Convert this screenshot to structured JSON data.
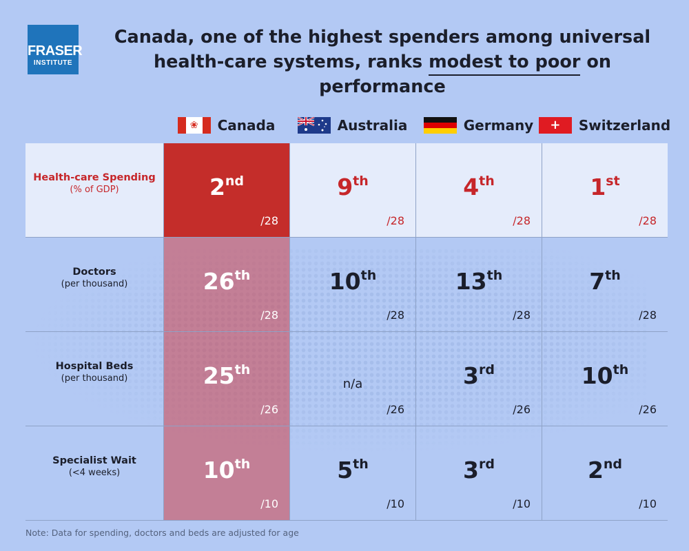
{
  "logo": {
    "line1": "FRASER",
    "line2": "INSTITUTE"
  },
  "title": {
    "line1": "Canada, one of the highest spenders among universal",
    "line2_pre": "health-care systems, ranks ",
    "line2_underlined": "modest to poor",
    "line2_post": " on performance"
  },
  "countries": [
    {
      "name": "Canada",
      "flag": "canada-flag-icon"
    },
    {
      "name": "Australia",
      "flag": "australia-flag-icon"
    },
    {
      "name": "Germany",
      "flag": "germany-flag-icon"
    },
    {
      "name": "Switzerland",
      "flag": "switzerland-flag-icon"
    }
  ],
  "rows": [
    {
      "label": "Health-care Spending",
      "sublabel": "(% of GDP)",
      "cells": [
        {
          "num": "2",
          "suffix": "nd",
          "denom": "/28"
        },
        {
          "num": "9",
          "suffix": "th",
          "denom": "/28"
        },
        {
          "num": "4",
          "suffix": "th",
          "denom": "/28"
        },
        {
          "num": "1",
          "suffix": "st",
          "denom": "/28"
        }
      ]
    },
    {
      "label": "Doctors",
      "sublabel": "(per thousand)",
      "cells": [
        {
          "num": "26",
          "suffix": "th",
          "denom": "/28"
        },
        {
          "num": "10",
          "suffix": "th",
          "denom": "/28"
        },
        {
          "num": "13",
          "suffix": "th",
          "denom": "/28"
        },
        {
          "num": "7",
          "suffix": "th",
          "denom": "/28"
        }
      ]
    },
    {
      "label": "Hospital Beds",
      "sublabel": "(per thousand)",
      "cells": [
        {
          "num": "25",
          "suffix": "th",
          "denom": "/26"
        },
        {
          "num": "n/a",
          "suffix": "",
          "denom": "/26"
        },
        {
          "num": "3",
          "suffix": "rd",
          "denom": "/26"
        },
        {
          "num": "10",
          "suffix": "th",
          "denom": "/26"
        }
      ]
    },
    {
      "label": "Specialist Wait",
      "sublabel": "(<4 weeks)",
      "cells": [
        {
          "num": "10",
          "suffix": "th",
          "denom": "/10"
        },
        {
          "num": "5",
          "suffix": "th",
          "denom": "/10"
        },
        {
          "num": "3",
          "suffix": "rd",
          "denom": "/10"
        },
        {
          "num": "2",
          "suffix": "nd",
          "denom": "/10"
        }
      ]
    }
  ],
  "note": "Note: Data for spending, doctors and beds are adjusted for age",
  "colors": {
    "background": "#b3c9f4",
    "accent_red": "#c42d2a",
    "logo_blue": "#1f74bb"
  }
}
